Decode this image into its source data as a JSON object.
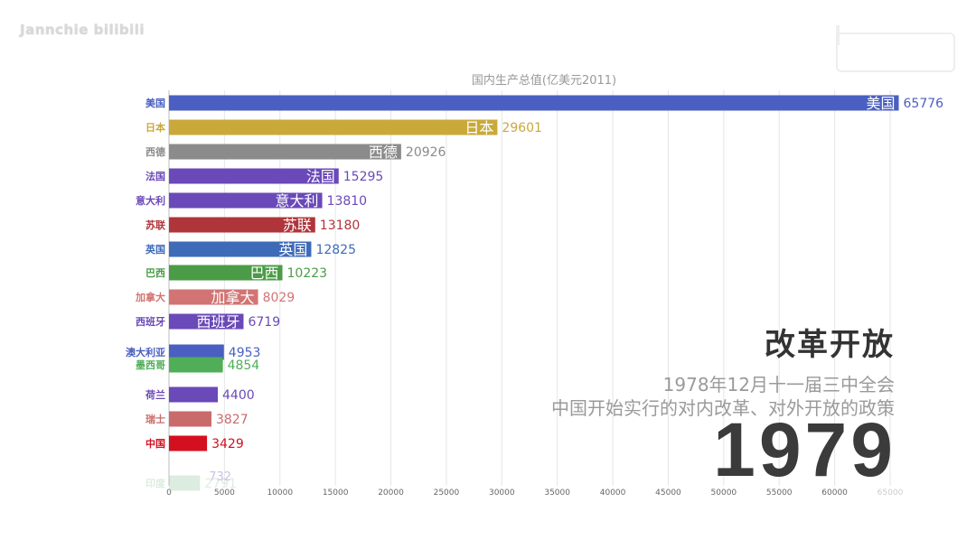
{
  "watermark": "Jannchie bilibili",
  "event": {
    "title": "改革开放",
    "line1": "1978年12月十一届三中全会",
    "line2": "中国开始实行的对内改革、对外开放的政策"
  },
  "year": "1979",
  "chart_data": {
    "type": "bar",
    "orientation": "horizontal",
    "title": "国内生产总值(亿美元2011)",
    "xlim": [
      0,
      65000
    ],
    "xticks": [
      0,
      5000,
      10000,
      15000,
      20000,
      25000,
      30000,
      35000,
      40000,
      45000,
      50000,
      55000,
      60000,
      65000
    ],
    "grid": true,
    "categories": [
      "美国",
      "日本",
      "西德",
      "法国",
      "意大利",
      "苏联",
      "英国",
      "巴西",
      "加拿大",
      "西班牙",
      "澳大利亚",
      "墨西哥",
      "荷兰",
      "瑞士",
      "中国",
      "印度"
    ],
    "values": [
      65776,
      29601,
      20926,
      15295,
      13810,
      13180,
      12825,
      10223,
      8029,
      6719,
      4953,
      4854,
      4400,
      3827,
      3429,
      2791
    ],
    "colors": [
      "#4a5fc1",
      "#c8a93a",
      "#8b8b8b",
      "#6a49b8",
      "#6a49b8",
      "#b0353b",
      "#3e6bb8",
      "#4b9b47",
      "#d27474",
      "#6a49b8",
      "#4a5fc1",
      "#4fae57",
      "#6a49b8",
      "#c96b6b",
      "#d40f1f",
      "#9ec9a8"
    ],
    "faded": [
      "印度"
    ],
    "faded_labels": [
      "2791",
      "732"
    ]
  }
}
